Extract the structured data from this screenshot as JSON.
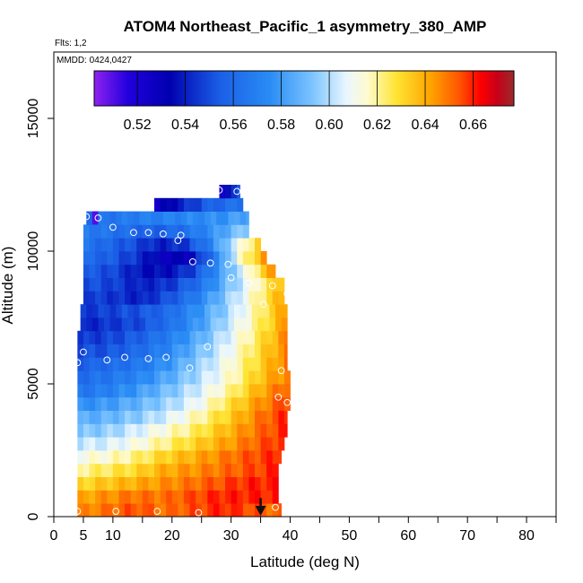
{
  "chart_data": {
    "type": "heatmap",
    "title": "ATOM4 Northeast_Pacific_1 asymmetry_380_AMP",
    "notes": {
      "flights": "Flts: 1,2",
      "dates": "MMDD: 0424,0427"
    },
    "xlabel": "Latitude (deg N)",
    "ylabel": "Altitude (m)",
    "xlim": [
      0,
      85
    ],
    "ylim": [
      0,
      17500
    ],
    "x_ticks": [
      0,
      5,
      10,
      20,
      30,
      40,
      50,
      60,
      70,
      80
    ],
    "x_minor_ticks": [
      15,
      25,
      35,
      45,
      55,
      65,
      75,
      85
    ],
    "y_ticks": [
      0,
      5000,
      10000,
      15000
    ],
    "colorbar": {
      "range": [
        0.502,
        0.677
      ],
      "ticks": [
        0.52,
        0.54,
        0.56,
        0.58,
        0.6,
        0.62,
        0.64,
        0.66
      ],
      "tick_labels": [
        "0.52",
        "0.54",
        "0.56",
        "0.58",
        "0.60",
        "0.62",
        "0.64",
        "0.66"
      ]
    },
    "bin_height": 500,
    "rows": [
      {
        "alt_bottom": 0,
        "lat_start": 4,
        "lat_end": 38.5,
        "values": [
          0.645,
          0.65,
          0.655,
          0.65,
          0.655,
          0.66,
          0.655,
          0.65
        ]
      },
      {
        "alt_bottom": 500,
        "lat_start": 4,
        "lat_end": 38,
        "values": [
          0.64,
          0.645,
          0.65,
          0.65,
          0.655,
          0.66,
          0.66,
          0.66
        ]
      },
      {
        "alt_bottom": 1000,
        "lat_start": 4,
        "lat_end": 38,
        "values": [
          0.63,
          0.635,
          0.64,
          0.645,
          0.65,
          0.655,
          0.66,
          0.66
        ]
      },
      {
        "alt_bottom": 1500,
        "lat_start": 4,
        "lat_end": 38,
        "values": [
          0.62,
          0.625,
          0.63,
          0.64,
          0.645,
          0.65,
          0.655,
          0.66
        ]
      },
      {
        "alt_bottom": 2000,
        "lat_start": 4,
        "lat_end": 38.5,
        "values": [
          0.612,
          0.615,
          0.622,
          0.632,
          0.64,
          0.648,
          0.655,
          0.66
        ]
      },
      {
        "alt_bottom": 2500,
        "lat_start": 4,
        "lat_end": 39,
        "values": [
          0.602,
          0.605,
          0.612,
          0.622,
          0.632,
          0.642,
          0.652,
          0.66
        ]
      },
      {
        "alt_bottom": 3000,
        "lat_start": 4,
        "lat_end": 39.5,
        "values": [
          0.592,
          0.596,
          0.605,
          0.615,
          0.625,
          0.638,
          0.65,
          0.66
        ]
      },
      {
        "alt_bottom": 3500,
        "lat_start": 4,
        "lat_end": 39.5,
        "values": [
          0.585,
          0.588,
          0.595,
          0.605,
          0.618,
          0.632,
          0.648,
          0.66
        ]
      },
      {
        "alt_bottom": 4000,
        "lat_start": 4,
        "lat_end": 40,
        "values": [
          0.575,
          0.58,
          0.588,
          0.598,
          0.61,
          0.628,
          0.645,
          0.658
        ]
      },
      {
        "alt_bottom": 4500,
        "lat_start": 4,
        "lat_end": 40,
        "values": [
          0.565,
          0.57,
          0.58,
          0.592,
          0.605,
          0.62,
          0.64,
          0.655
        ]
      },
      {
        "alt_bottom": 5000,
        "lat_start": 4,
        "lat_end": 40,
        "values": [
          0.56,
          0.565,
          0.572,
          0.585,
          0.6,
          0.615,
          0.635,
          0.65
        ]
      },
      {
        "alt_bottom": 5500,
        "lat_start": 4,
        "lat_end": 39.5,
        "values": [
          0.555,
          0.56,
          0.565,
          0.578,
          0.595,
          0.612,
          0.63,
          0.65
        ]
      },
      {
        "alt_bottom": 6000,
        "lat_start": 4,
        "lat_end": 39.5,
        "values": [
          0.55,
          0.552,
          0.56,
          0.572,
          0.59,
          0.608,
          0.628,
          0.648
        ]
      },
      {
        "alt_bottom": 6500,
        "lat_start": 4,
        "lat_end": 39.5,
        "values": [
          0.545,
          0.548,
          0.555,
          0.568,
          0.585,
          0.605,
          0.625,
          0.648
        ]
      },
      {
        "alt_bottom": 7000,
        "lat_start": 4.5,
        "lat_end": 39.5,
        "values": [
          0.54,
          0.545,
          0.55,
          0.562,
          0.58,
          0.602,
          0.622,
          0.645
        ]
      },
      {
        "alt_bottom": 7500,
        "lat_start": 4.5,
        "lat_end": 39.5,
        "values": [
          0.545,
          0.548,
          0.552,
          0.56,
          0.578,
          0.598,
          0.62,
          0.645
        ]
      },
      {
        "alt_bottom": 8000,
        "lat_start": 5,
        "lat_end": 39,
        "values": [
          0.548,
          0.545,
          0.54,
          0.552,
          0.57,
          0.595,
          0.618,
          0.642
        ]
      },
      {
        "alt_bottom": 8500,
        "lat_start": 5,
        "lat_end": 39,
        "values": [
          0.552,
          0.548,
          0.54,
          0.545,
          0.562,
          0.59,
          0.615,
          0.64
        ]
      },
      {
        "alt_bottom": 9000,
        "lat_start": 5,
        "lat_end": 37.5,
        "values": [
          0.555,
          0.55,
          0.538,
          0.535,
          0.548,
          0.58,
          0.612,
          0.648
        ]
      },
      {
        "alt_bottom": 9500,
        "lat_start": 5,
        "lat_end": 36,
        "values": [
          0.56,
          0.555,
          0.545,
          0.53,
          0.53,
          0.565,
          0.615,
          0.645
        ]
      },
      {
        "alt_bottom": 10000,
        "lat_start": 5,
        "lat_end": 35,
        "values": [
          0.565,
          0.558,
          0.55,
          0.54,
          0.545,
          0.57,
          0.605,
          0.635
        ]
      },
      {
        "alt_bottom": 10500,
        "lat_start": 5,
        "lat_end": 33,
        "values": [
          0.568,
          0.565,
          0.56,
          0.555,
          0.56,
          0.57,
          0.585,
          0.598
        ]
      },
      {
        "alt_bottom": 11000,
        "lat_start": 5.5,
        "lat_end": 33,
        "values": [
          0.56,
          0.565,
          0.568,
          0.57,
          0.572,
          0.575,
          0.578,
          0.585
        ]
      },
      {
        "alt_bottom": 11500,
        "lat_start": 17,
        "lat_end": 32,
        "values": [
          0.525,
          0.535,
          0.545,
          0.555,
          0.56,
          0.565
        ]
      },
      {
        "alt_bottom": 12000,
        "lat_start": 28,
        "lat_end": 31.5,
        "values": [
          0.52,
          0.535,
          0.56
        ]
      }
    ],
    "dark_left_cells": [
      {
        "alt_bottom": 11000,
        "lat_start": 6.5,
        "lat_end": 7.5,
        "value": 0.51
      }
    ],
    "points": [
      {
        "lat": 4,
        "alt": 200
      },
      {
        "lat": 10.5,
        "alt": 200
      },
      {
        "lat": 17.5,
        "alt": 200
      },
      {
        "lat": 24.5,
        "alt": 150
      },
      {
        "lat": 37.5,
        "alt": 350
      },
      {
        "lat": 39.5,
        "alt": 4300
      },
      {
        "lat": 38,
        "alt": 4500
      },
      {
        "lat": 4,
        "alt": 5800
      },
      {
        "lat": 5,
        "alt": 6200
      },
      {
        "lat": 9,
        "alt": 5900
      },
      {
        "lat": 12,
        "alt": 6000
      },
      {
        "lat": 16,
        "alt": 5950
      },
      {
        "lat": 19,
        "alt": 6000
      },
      {
        "lat": 23,
        "alt": 5600
      },
      {
        "lat": 26,
        "alt": 6400
      },
      {
        "lat": 38.5,
        "alt": 5500
      },
      {
        "lat": 35.5,
        "alt": 8000
      },
      {
        "lat": 37,
        "alt": 8700
      },
      {
        "lat": 39.5,
        "alt": 8400
      },
      {
        "lat": 33,
        "alt": 8800
      },
      {
        "lat": 30,
        "alt": 9000
      },
      {
        "lat": 23.5,
        "alt": 9600
      },
      {
        "lat": 26.5,
        "alt": 9550
      },
      {
        "lat": 29.5,
        "alt": 9500
      },
      {
        "lat": 21,
        "alt": 10400
      },
      {
        "lat": 21.5,
        "alt": 10600
      },
      {
        "lat": 18.5,
        "alt": 10650
      },
      {
        "lat": 16,
        "alt": 10700
      },
      {
        "lat": 13.5,
        "alt": 10700
      },
      {
        "lat": 10,
        "alt": 10900
      },
      {
        "lat": 7.5,
        "alt": 11250
      },
      {
        "lat": 5.5,
        "alt": 11300
      },
      {
        "lat": 28,
        "alt": 12300
      },
      {
        "lat": 31,
        "alt": 12250
      }
    ],
    "marker_arrow": {
      "lat": 35,
      "alt_top": 700
    }
  }
}
